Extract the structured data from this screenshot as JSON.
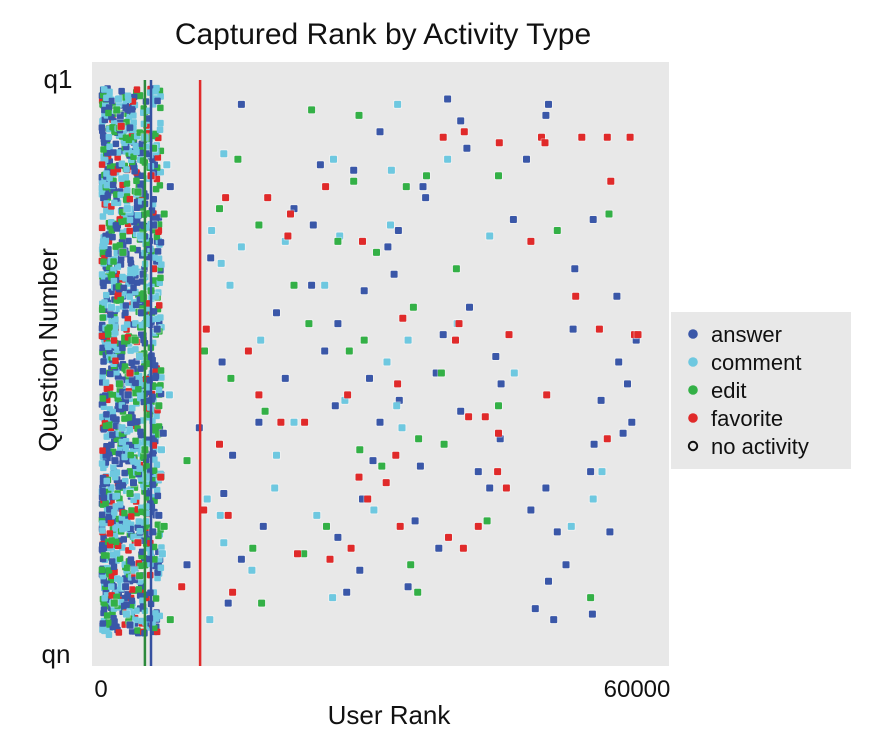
{
  "chart_data": {
    "type": "scatter",
    "title": "Captured Rank by Activity Type",
    "xlabel": "User Rank",
    "ylabel": "Question Number",
    "x_ticks": [
      "0",
      "60000"
    ],
    "y_ticks": [
      "q1",
      "qn"
    ],
    "xlim": [
      0,
      62000
    ],
    "ylim": [
      0,
      100
    ],
    "grid": false,
    "legend_position": "right",
    "background_color": "#e8e8e8",
    "series": [
      {
        "name": "answer",
        "color": "#3a57a8",
        "points": [
          [
            2200,
            5
          ],
          [
            5400,
            12
          ],
          [
            7900,
            18
          ],
          [
            16000,
            3
          ],
          [
            25000,
            14
          ],
          [
            31800,
            8
          ],
          [
            37000,
            20
          ],
          [
            39500,
            2
          ],
          [
            41000,
            6
          ],
          [
            50700,
            5
          ],
          [
            51000,
            3
          ],
          [
            56100,
            24
          ],
          [
            54000,
            33
          ],
          [
            58800,
            38
          ],
          [
            61000,
            46
          ],
          [
            59000,
            50
          ],
          [
            60000,
            54
          ],
          [
            57000,
            57
          ],
          [
            60500,
            61
          ],
          [
            59500,
            63
          ],
          [
            56200,
            65
          ],
          [
            50700,
            73
          ],
          [
            49000,
            77
          ],
          [
            55800,
            70
          ],
          [
            52000,
            81
          ],
          [
            58000,
            81
          ],
          [
            53000,
            87
          ],
          [
            51000,
            90
          ],
          [
            49500,
            95
          ],
          [
            51600,
            97
          ],
          [
            56000,
            96
          ],
          [
            33900,
            26
          ],
          [
            32700,
            29
          ],
          [
            30000,
            37
          ],
          [
            27000,
            43
          ],
          [
            25500,
            48
          ],
          [
            30600,
            53
          ],
          [
            34000,
            57
          ],
          [
            31800,
            61
          ],
          [
            31000,
            68
          ],
          [
            29800,
            75
          ],
          [
            27000,
            82
          ],
          [
            29500,
            88
          ],
          [
            28000,
            92
          ],
          [
            24000,
            36
          ],
          [
            20000,
            41
          ],
          [
            21000,
            53
          ],
          [
            18000,
            61
          ],
          [
            15000,
            67
          ],
          [
            14000,
            74
          ],
          [
            18500,
            80
          ],
          [
            16000,
            86
          ],
          [
            14500,
            94
          ],
          [
            22000,
            22
          ],
          [
            24200,
            25
          ],
          [
            42000,
            40
          ],
          [
            39000,
            45
          ],
          [
            45000,
            49
          ],
          [
            41000,
            59
          ],
          [
            45500,
            64
          ],
          [
            43000,
            70
          ],
          [
            38500,
            84
          ],
          [
            35000,
            91
          ],
          [
            6000,
            25
          ],
          [
            4800,
            34
          ],
          [
            6400,
            44
          ],
          [
            3100,
            56
          ],
          [
            7100,
            63
          ],
          [
            3700,
            72
          ],
          [
            5900,
            81
          ],
          [
            2800,
            91
          ],
          [
            3300,
            98
          ],
          [
            1600,
            68
          ],
          [
            4600,
            41
          ],
          [
            6600,
            78
          ],
          [
            41700,
            11
          ],
          [
            45600,
            54
          ],
          [
            38200,
            52
          ],
          [
            36700,
            18
          ],
          [
            33400,
            34
          ],
          [
            47000,
            24
          ],
          [
            12500,
            31
          ],
          [
            13800,
            50
          ],
          [
            11200,
            62
          ],
          [
            9800,
            87
          ],
          [
            44300,
            73
          ],
          [
            53800,
            44
          ],
          [
            48500,
            13
          ],
          [
            35800,
            79
          ],
          [
            36400,
            69
          ],
          [
            26700,
            58
          ],
          [
            28800,
            15
          ]
        ]
      },
      {
        "name": "comment",
        "color": "#6ec8e0",
        "points": [
          [
            2000,
            2
          ],
          [
            5000,
            9
          ],
          [
            7500,
            14
          ],
          [
            33800,
            3
          ],
          [
            14000,
            12
          ],
          [
            26500,
            13
          ],
          [
            33100,
            15
          ],
          [
            12600,
            26
          ],
          [
            16000,
            29
          ],
          [
            13700,
            32
          ],
          [
            14700,
            36
          ],
          [
            21000,
            28
          ],
          [
            27200,
            27
          ],
          [
            33000,
            25
          ],
          [
            32600,
            50
          ],
          [
            18200,
            46
          ],
          [
            3000,
            22
          ],
          [
            6200,
            38
          ],
          [
            4400,
            49
          ],
          [
            2400,
            62
          ],
          [
            5300,
            71
          ],
          [
            7000,
            85
          ],
          [
            2900,
            96
          ],
          [
            13600,
            78
          ],
          [
            12100,
            75
          ],
          [
            17200,
            88
          ],
          [
            24600,
            78
          ],
          [
            27800,
            57
          ],
          [
            33700,
            58
          ],
          [
            34300,
            62
          ],
          [
            25500,
            36
          ],
          [
            22000,
            61
          ],
          [
            20000,
            67
          ],
          [
            12400,
            97
          ],
          [
            14000,
            83
          ],
          [
            31100,
            77
          ],
          [
            35000,
            46
          ],
          [
            44300,
            27
          ],
          [
            40600,
            43
          ],
          [
            47100,
            52
          ],
          [
            57100,
            70
          ],
          [
            56100,
            75
          ],
          [
            53600,
            80
          ],
          [
            19800,
            73
          ],
          [
            26400,
            93
          ],
          [
            1200,
            40
          ],
          [
            7800,
            56
          ],
          [
            4500,
            27
          ],
          [
            3800,
            88
          ],
          [
            6900,
            66
          ],
          [
            39500,
            13
          ]
        ]
      },
      {
        "name": "edit",
        "color": "#33b046",
        "points": [
          [
            1800,
            4
          ],
          [
            6000,
            11
          ],
          [
            4200,
            19
          ],
          [
            7200,
            23
          ],
          [
            24000,
            4
          ],
          [
            15600,
            13
          ],
          [
            29400,
            5
          ],
          [
            28800,
            17
          ],
          [
            34800,
            18
          ],
          [
            37100,
            16
          ],
          [
            45300,
            16
          ],
          [
            18000,
            25
          ],
          [
            27000,
            28
          ],
          [
            52000,
            26
          ],
          [
            57900,
            23
          ],
          [
            40500,
            33
          ],
          [
            22000,
            36
          ],
          [
            35600,
            40
          ],
          [
            28300,
            48
          ],
          [
            30000,
            46
          ],
          [
            38800,
            52
          ],
          [
            45300,
            58
          ],
          [
            36200,
            64
          ],
          [
            29500,
            66
          ],
          [
            32000,
            69
          ],
          [
            44000,
            79
          ],
          [
            25700,
            80
          ],
          [
            17300,
            84
          ],
          [
            23100,
            85
          ],
          [
            18300,
            94
          ],
          [
            36100,
            92
          ],
          [
            2500,
            30
          ],
          [
            5700,
            37
          ],
          [
            3900,
            46
          ],
          [
            2100,
            54
          ],
          [
            6600,
            58
          ],
          [
            5000,
            66
          ],
          [
            3300,
            74
          ],
          [
            7200,
            80
          ],
          [
            4400,
            89
          ],
          [
            1500,
            94
          ],
          [
            14800,
            53
          ],
          [
            11800,
            48
          ],
          [
            9800,
            68
          ],
          [
            7900,
            97
          ],
          [
            35300,
            87
          ],
          [
            55800,
            93
          ],
          [
            39100,
            65
          ],
          [
            23700,
            43
          ],
          [
            18700,
            59
          ],
          [
            31400,
            30
          ],
          [
            13500,
            22
          ]
        ]
      },
      {
        "name": "favorite",
        "color": "#e02a2a",
        "points": [
          [
            2300,
            7
          ],
          [
            5700,
            16
          ],
          [
            14200,
            20
          ],
          [
            19000,
            20
          ],
          [
            21300,
            27
          ],
          [
            25600,
            18
          ],
          [
            39000,
            9
          ],
          [
            41400,
            8
          ],
          [
            45400,
            10
          ],
          [
            50200,
            9
          ],
          [
            50600,
            10
          ],
          [
            54800,
            9
          ],
          [
            57700,
            9
          ],
          [
            60300,
            9
          ],
          [
            58100,
            17
          ],
          [
            21600,
            23
          ],
          [
            16800,
            48
          ],
          [
            20500,
            61
          ],
          [
            23200,
            61
          ],
          [
            28100,
            56
          ],
          [
            33600,
            67
          ],
          [
            32500,
            72
          ],
          [
            41900,
            60
          ],
          [
            43800,
            60
          ],
          [
            45300,
            63
          ],
          [
            50800,
            56
          ],
          [
            57700,
            64
          ],
          [
            60800,
            45
          ],
          [
            61200,
            45
          ],
          [
            56800,
            44
          ],
          [
            54100,
            38
          ],
          [
            40800,
            43
          ],
          [
            40400,
            46
          ],
          [
            34400,
            42
          ],
          [
            29400,
            71
          ],
          [
            30400,
            75
          ],
          [
            22400,
            85
          ],
          [
            26100,
            86
          ],
          [
            34100,
            80
          ],
          [
            45200,
            70
          ],
          [
            41300,
            84
          ],
          [
            43000,
            80
          ],
          [
            33800,
            54
          ],
          [
            29800,
            28
          ],
          [
            12000,
            44
          ],
          [
            13500,
            65
          ],
          [
            14500,
            78
          ],
          [
            6000,
            33
          ],
          [
            3300,
            52
          ],
          [
            6800,
            71
          ],
          [
            4200,
            83
          ],
          [
            11700,
            77
          ],
          [
            9200,
            91
          ],
          [
            15000,
            92
          ],
          [
            28500,
            84
          ],
          [
            18000,
            56
          ],
          [
            46200,
            73
          ],
          [
            49000,
            28
          ],
          [
            46500,
            45
          ],
          [
            39600,
            82
          ]
        ]
      }
    ],
    "reference_lines": [
      {
        "x": 5000,
        "color": "#2c8a3c"
      },
      {
        "x": 5700,
        "color": "#3550a0"
      },
      {
        "x": 11300,
        "color": "#e02a2a"
      }
    ],
    "legend": [
      {
        "label": "answer",
        "color": "#3a57a8",
        "marker": "filled"
      },
      {
        "label": "comment",
        "color": "#6ec8e0",
        "marker": "filled"
      },
      {
        "label": "edit",
        "color": "#33b046",
        "marker": "filled"
      },
      {
        "label": "favorite",
        "color": "#e02a2a",
        "marker": "filled"
      },
      {
        "label": "no activity",
        "color": "#111111",
        "marker": "hollow"
      }
    ]
  }
}
